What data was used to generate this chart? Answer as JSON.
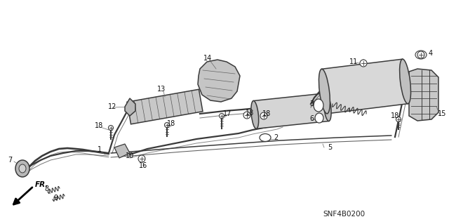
{
  "bg_color": "#ffffff",
  "diagram_code": "SNF4B0200",
  "fr_label": "FR.",
  "line_color": "#3a3a3a",
  "label_color": "#111111",
  "label_fontsize": 7.0,
  "component_facecolor": "#d8d8d8",
  "component_edgecolor": "#3a3a3a"
}
